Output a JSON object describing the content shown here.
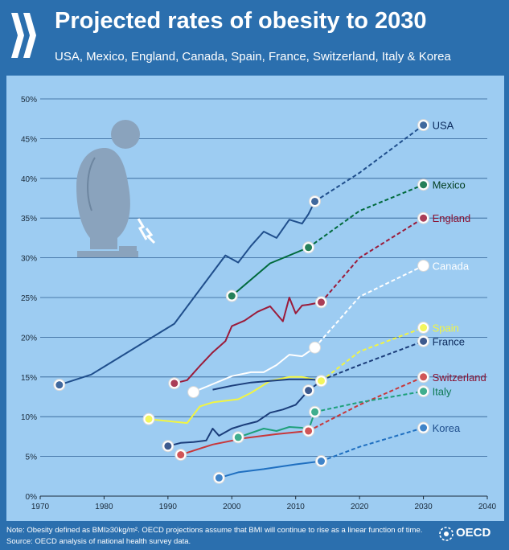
{
  "header": {
    "title": "Projected rates of obesity to 2030",
    "subtitle": "USA, Mexico, England, Canada, Spain, France, Switzerland, Italy & Korea"
  },
  "footer": {
    "note": "Note: Obesity defined as BMI≥30kg/m². OECD projections assume that BMI will continue to rise as a linear function of time.",
    "source": "Source: OECD analysis of national health survey data.",
    "logo_text": "OECD"
  },
  "colors": {
    "background": "#2b6fae",
    "plot": "#9dccf2"
  },
  "chart_data": {
    "type": "line",
    "title": "Projected rates of obesity to 2030",
    "xlabel": "",
    "ylabel": "",
    "xlim": [
      1970,
      2040
    ],
    "ylim": [
      0,
      50
    ],
    "xticks": [
      1970,
      1980,
      1990,
      2000,
      2010,
      2020,
      2030,
      2040
    ],
    "yticks": [
      0,
      5,
      10,
      15,
      20,
      25,
      30,
      35,
      40,
      45,
      50
    ],
    "ytick_labels": [
      "0%",
      "5%",
      "10%",
      "15%",
      "20%",
      "25%",
      "30%",
      "35%",
      "40%",
      "45%",
      "50%"
    ],
    "grid": true,
    "projection_style": "dashed",
    "series": [
      {
        "name": "USA",
        "color": "#1f4e8c",
        "label_color": "#0b2a5c",
        "observed": [
          [
            1973,
            14
          ],
          [
            1978,
            15.3
          ],
          [
            1991,
            21.7
          ],
          [
            1999,
            30.3
          ],
          [
            2001,
            29.4
          ],
          [
            2003,
            31.5
          ],
          [
            2005,
            33.3
          ],
          [
            2007,
            32.5
          ],
          [
            2009,
            34.8
          ],
          [
            2011,
            34.3
          ],
          [
            2012,
            35.5
          ],
          [
            2013,
            37.1
          ]
        ],
        "projected": [
          [
            2013,
            37.1
          ],
          [
            2020,
            40.7
          ],
          [
            2030,
            46.7
          ]
        ],
        "markers": [
          1973,
          2013,
          2030
        ]
      },
      {
        "name": "Mexico",
        "color": "#006a3c",
        "label_color": "#003d1e",
        "observed": [
          [
            2000,
            25.2
          ],
          [
            2006,
            29.3
          ],
          [
            2012,
            31.3
          ]
        ],
        "projected": [
          [
            2012,
            31.3
          ],
          [
            2020,
            35.9
          ],
          [
            2030,
            39.2
          ]
        ],
        "markers": [
          2000,
          2012,
          2030
        ]
      },
      {
        "name": "England",
        "color": "#9b1b3a",
        "label_color": "#8a1030",
        "observed": [
          [
            1991,
            14.2
          ],
          [
            1993,
            14.6
          ],
          [
            1995,
            16.4
          ],
          [
            1997,
            18.1
          ],
          [
            1999,
            19.5
          ],
          [
            2000,
            21.4
          ],
          [
            2002,
            22.1
          ],
          [
            2004,
            23.2
          ],
          [
            2006,
            23.9
          ],
          [
            2008,
            22
          ],
          [
            2009,
            25
          ],
          [
            2010,
            23
          ],
          [
            2011,
            24
          ],
          [
            2012,
            24.1
          ],
          [
            2014,
            24.4
          ]
        ],
        "projected": [
          [
            2014,
            24.4
          ],
          [
            2020,
            30
          ],
          [
            2030,
            35
          ]
        ],
        "markers": [
          1991,
          2014,
          2030
        ]
      },
      {
        "name": "Canada",
        "color": "#ffffff",
        "label_color": "#ffffff",
        "observed": [
          [
            1994,
            13.1
          ],
          [
            2000,
            15.1
          ],
          [
            2003,
            15.6
          ],
          [
            2005,
            15.6
          ],
          [
            2007,
            16.5
          ],
          [
            2009,
            17.8
          ],
          [
            2011,
            17.6
          ],
          [
            2013,
            18.7
          ]
        ],
        "projected": [
          [
            2013,
            18.7
          ],
          [
            2020,
            25.1
          ],
          [
            2030,
            29
          ]
        ],
        "markers": [
          1994,
          2013,
          2030
        ]
      },
      {
        "name": "Spain",
        "color": "#f2f542",
        "label_color": "#f2f542",
        "observed": [
          [
            1987,
            9.7
          ],
          [
            1993,
            9.2
          ],
          [
            1995,
            11.3
          ],
          [
            1997,
            11.8
          ],
          [
            2001,
            12.2
          ],
          [
            2003,
            13
          ],
          [
            2006,
            14.5
          ],
          [
            2009,
            15
          ],
          [
            2011,
            15
          ],
          [
            2014,
            14.5
          ]
        ],
        "projected": [
          [
            2014,
            14.5
          ],
          [
            2020,
            18.2
          ],
          [
            2030,
            21.2
          ]
        ],
        "markers": [
          1987,
          2014,
          2030
        ]
      },
      {
        "name": "France",
        "color": "#1b3d7a",
        "label_color": "#0b2a5c",
        "observed": [
          [
            1997,
            13.4
          ],
          [
            2000,
            13.9
          ],
          [
            2003,
            14.3
          ],
          [
            2006,
            14.5
          ],
          [
            2009,
            14.7
          ],
          [
            2012,
            14.7
          ],
          [
            2014,
            14.6
          ]
        ],
        "projected": [
          [
            2014,
            14.6
          ],
          [
            2020,
            16.5
          ],
          [
            2030,
            19.5
          ]
        ],
        "markers": [
          2030
        ]
      },
      {
        "name": "Switzerland",
        "color": "#c8373a",
        "label_color": "#8a1030",
        "observed": [
          [
            1992,
            5.2
          ],
          [
            1997,
            6.5
          ],
          [
            2002,
            7.3
          ],
          [
            2007,
            7.8
          ],
          [
            2012,
            8.2
          ]
        ],
        "projected": [
          [
            2012,
            8.2
          ],
          [
            2020,
            11.5
          ],
          [
            2030,
            15
          ]
        ],
        "markers": [
          1992,
          2012,
          2030
        ]
      },
      {
        "name": "Italy",
        "color": "#1ea07a",
        "label_color": "#0f7a55",
        "observed": [
          [
            2001,
            7.4
          ],
          [
            2005,
            8.5
          ],
          [
            2007,
            8.2
          ],
          [
            2009,
            8.7
          ],
          [
            2011,
            8.6
          ],
          [
            2012,
            8.3
          ],
          [
            2013,
            10.6
          ]
        ],
        "projected": [
          [
            2013,
            10.6
          ],
          [
            2020,
            11.8
          ],
          [
            2030,
            13.2
          ]
        ],
        "markers": [
          2001,
          2013,
          2030
        ]
      },
      {
        "name": "France (observed)",
        "color": "#1b3d7a",
        "label_color": "#0b2a5c",
        "observed": [
          [
            1990,
            6.3
          ],
          [
            1992,
            6.7
          ],
          [
            1994,
            6.8
          ],
          [
            1996,
            7.0
          ],
          [
            1997,
            8.5
          ],
          [
            1998,
            7.6
          ],
          [
            2000,
            8.5
          ],
          [
            2002,
            9.0
          ],
          [
            2004,
            9.4
          ],
          [
            2006,
            10.5
          ],
          [
            2008,
            10.9
          ],
          [
            2010,
            11.5
          ],
          [
            2012,
            13.3
          ]
        ],
        "projected": [
          [
            2012,
            13.3
          ],
          [
            2014,
            14.5
          ]
        ],
        "markers": [
          1990,
          2012
        ]
      },
      {
        "name": "Korea",
        "color": "#1f6fc0",
        "label_color": "#1f4e8c",
        "observed": [
          [
            1998,
            2.3
          ],
          [
            2001,
            3
          ],
          [
            2005,
            3.4
          ],
          [
            2010,
            4
          ],
          [
            2014,
            4.4
          ]
        ],
        "projected": [
          [
            2014,
            4.4
          ],
          [
            2020,
            6.2
          ],
          [
            2030,
            8.6
          ]
        ],
        "markers": [
          1998,
          2014,
          2030
        ]
      }
    ],
    "labels": [
      {
        "name": "USA",
        "text": "USA"
      },
      {
        "name": "Mexico",
        "text": "Mexico"
      },
      {
        "name": "England",
        "text": "England"
      },
      {
        "name": "Canada",
        "text": "Canada"
      },
      {
        "name": "Spain",
        "text": "Spain"
      },
      {
        "name": "France",
        "text": "France"
      },
      {
        "name": "Switzerland",
        "text": "Switzerland"
      },
      {
        "name": "Italy",
        "text": "Italy"
      },
      {
        "name": "Korea",
        "text": "Korea"
      }
    ]
  }
}
